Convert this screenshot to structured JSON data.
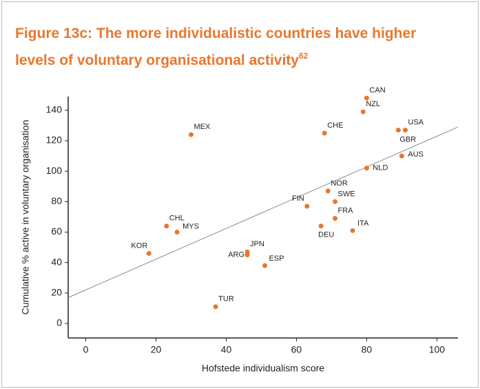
{
  "chart_data": {
    "type": "scatter",
    "title_lines": [
      "Figure 13c: The more individualistic countries have higher",
      "levels of voluntary organisational activity"
    ],
    "title_superscript": "62",
    "xlabel": "Hofstede individualism score",
    "ylabel": "Cumulative % active in voluntary organisation",
    "labels": [
      "CAN",
      "NZL",
      "USA",
      "GBR",
      "CHE",
      "MEX",
      "AUS",
      "NLD",
      "NOR",
      "SWE",
      "FIN",
      "FRA",
      "DEU",
      "ITA",
      "CHL",
      "MYS",
      "KOR",
      "JPN",
      "ARG",
      "ESP",
      "TUR"
    ],
    "x": [
      80,
      79,
      91,
      89,
      68,
      30,
      90,
      80,
      69,
      71,
      63,
      71,
      67,
      76,
      23,
      26,
      18,
      46,
      46,
      51,
      37
    ],
    "y": [
      148,
      139,
      127,
      127,
      125,
      124,
      110,
      102,
      87,
      80,
      77,
      69,
      64,
      61,
      64,
      60,
      46,
      47,
      45,
      38,
      11
    ],
    "color": "#e8772e",
    "trendline": {
      "x": [
        -5,
        106
      ],
      "y": [
        17,
        129
      ],
      "color": "#888888"
    },
    "xlim": [
      -5,
      106
    ],
    "ylim": [
      -9.5,
      149
    ],
    "xticks": [
      0,
      20,
      40,
      60,
      80,
      100
    ],
    "yticks": [
      0,
      20,
      40,
      60,
      80,
      100,
      120,
      140
    ],
    "grid": false
  }
}
